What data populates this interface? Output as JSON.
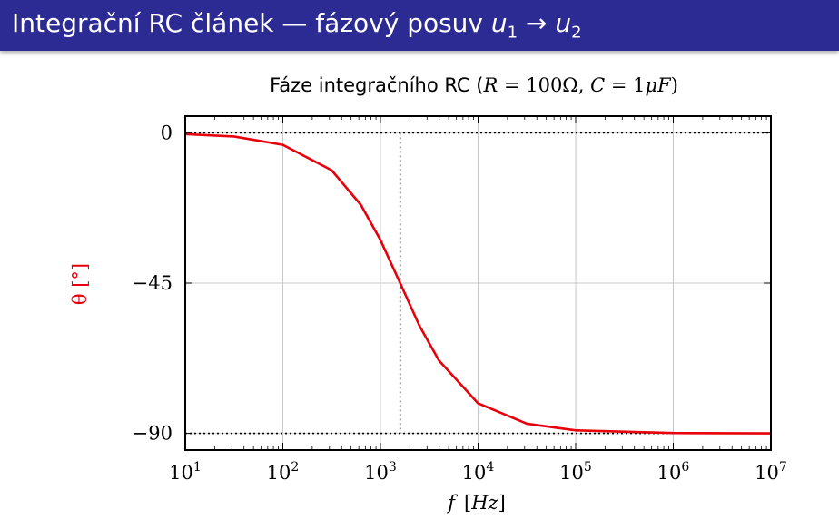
{
  "header": {
    "title_text": "Integrační RC článek — fázový posuv ",
    "title_var": "u",
    "title_sub1": "1",
    "title_arrow": " → ",
    "title_sub2": "2",
    "background_color": "#2c2a93"
  },
  "chart_data": {
    "type": "line",
    "title_text": "Fáze integračního RC  (",
    "title_R": "R",
    "title_R_eq": " = 100Ω, ",
    "title_C": "C",
    "title_C_eq": " = 1",
    "title_mu": "μ",
    "title_F": "F",
    "title_close": ")",
    "ylabel": "θ [°]",
    "ylabel_color": "#e8000b",
    "xlabel_var": "f",
    "xlabel_unit": "Hz",
    "x_scale": "log",
    "xlim": [
      10,
      10000000
    ],
    "ylim": [
      -95,
      5
    ],
    "x_tick_base": "10",
    "x_tick_exponents": [
      "1",
      "2",
      "3",
      "4",
      "5",
      "6",
      "7"
    ],
    "y_ticks": [
      {
        "value": 0,
        "label": "0"
      },
      {
        "value": -45,
        "label": "−45"
      },
      {
        "value": -90,
        "label": "−90"
      }
    ],
    "grid": true,
    "reference_lines": [
      {
        "axis": "y",
        "value": 0,
        "style": "dotted"
      },
      {
        "axis": "y",
        "value": -90,
        "style": "dotted"
      },
      {
        "axis": "x",
        "value": 1591.5,
        "style": "dotted"
      }
    ],
    "series": [
      {
        "color": "#e8000b",
        "x": [
          10,
          31.6,
          100,
          316,
          631,
          1000,
          1591.5,
          2512,
          3981,
          10000,
          31623,
          100000,
          1000000,
          10000000
        ],
        "y": [
          -0.4,
          -1.1,
          -3.6,
          -11.2,
          -21.6,
          -32.1,
          -45.0,
          -57.8,
          -68.2,
          -81.0,
          -87.1,
          -89.1,
          -89.9,
          -90.0
        ]
      }
    ]
  }
}
